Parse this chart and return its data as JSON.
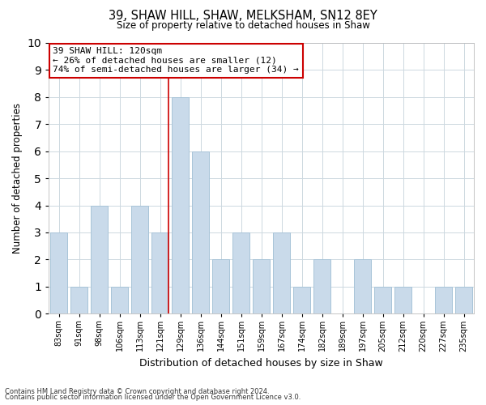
{
  "title1": "39, SHAW HILL, SHAW, MELKSHAM, SN12 8EY",
  "title2": "Size of property relative to detached houses in Shaw",
  "xlabel": "Distribution of detached houses by size in Shaw",
  "ylabel": "Number of detached properties",
  "bar_color": "#c9daea",
  "bar_edge_color": "#a8c4d8",
  "bin_labels": [
    "83sqm",
    "91sqm",
    "98sqm",
    "106sqm",
    "113sqm",
    "121sqm",
    "129sqm",
    "136sqm",
    "144sqm",
    "151sqm",
    "159sqm",
    "167sqm",
    "174sqm",
    "182sqm",
    "189sqm",
    "197sqm",
    "205sqm",
    "212sqm",
    "220sqm",
    "227sqm",
    "235sqm"
  ],
  "counts": [
    3,
    1,
    4,
    1,
    4,
    3,
    8,
    6,
    2,
    3,
    2,
    3,
    1,
    2,
    0,
    2,
    1,
    1,
    0,
    1,
    1
  ],
  "ylim": [
    0,
    10
  ],
  "yticks": [
    0,
    1,
    2,
    3,
    4,
    5,
    6,
    7,
    8,
    9,
    10
  ],
  "vline_bin_index": 5,
  "annotation_title": "39 SHAW HILL: 120sqm",
  "annotation_line1": "← 26% of detached houses are smaller (12)",
  "annotation_line2": "74% of semi-detached houses are larger (34) →",
  "vline_color": "#cc0000",
  "annotation_box_edge": "#cc0000",
  "grid_color": "#cdd8e0",
  "footnote1": "Contains HM Land Registry data © Crown copyright and database right 2024.",
  "footnote2": "Contains public sector information licensed under the Open Government Licence v3.0."
}
